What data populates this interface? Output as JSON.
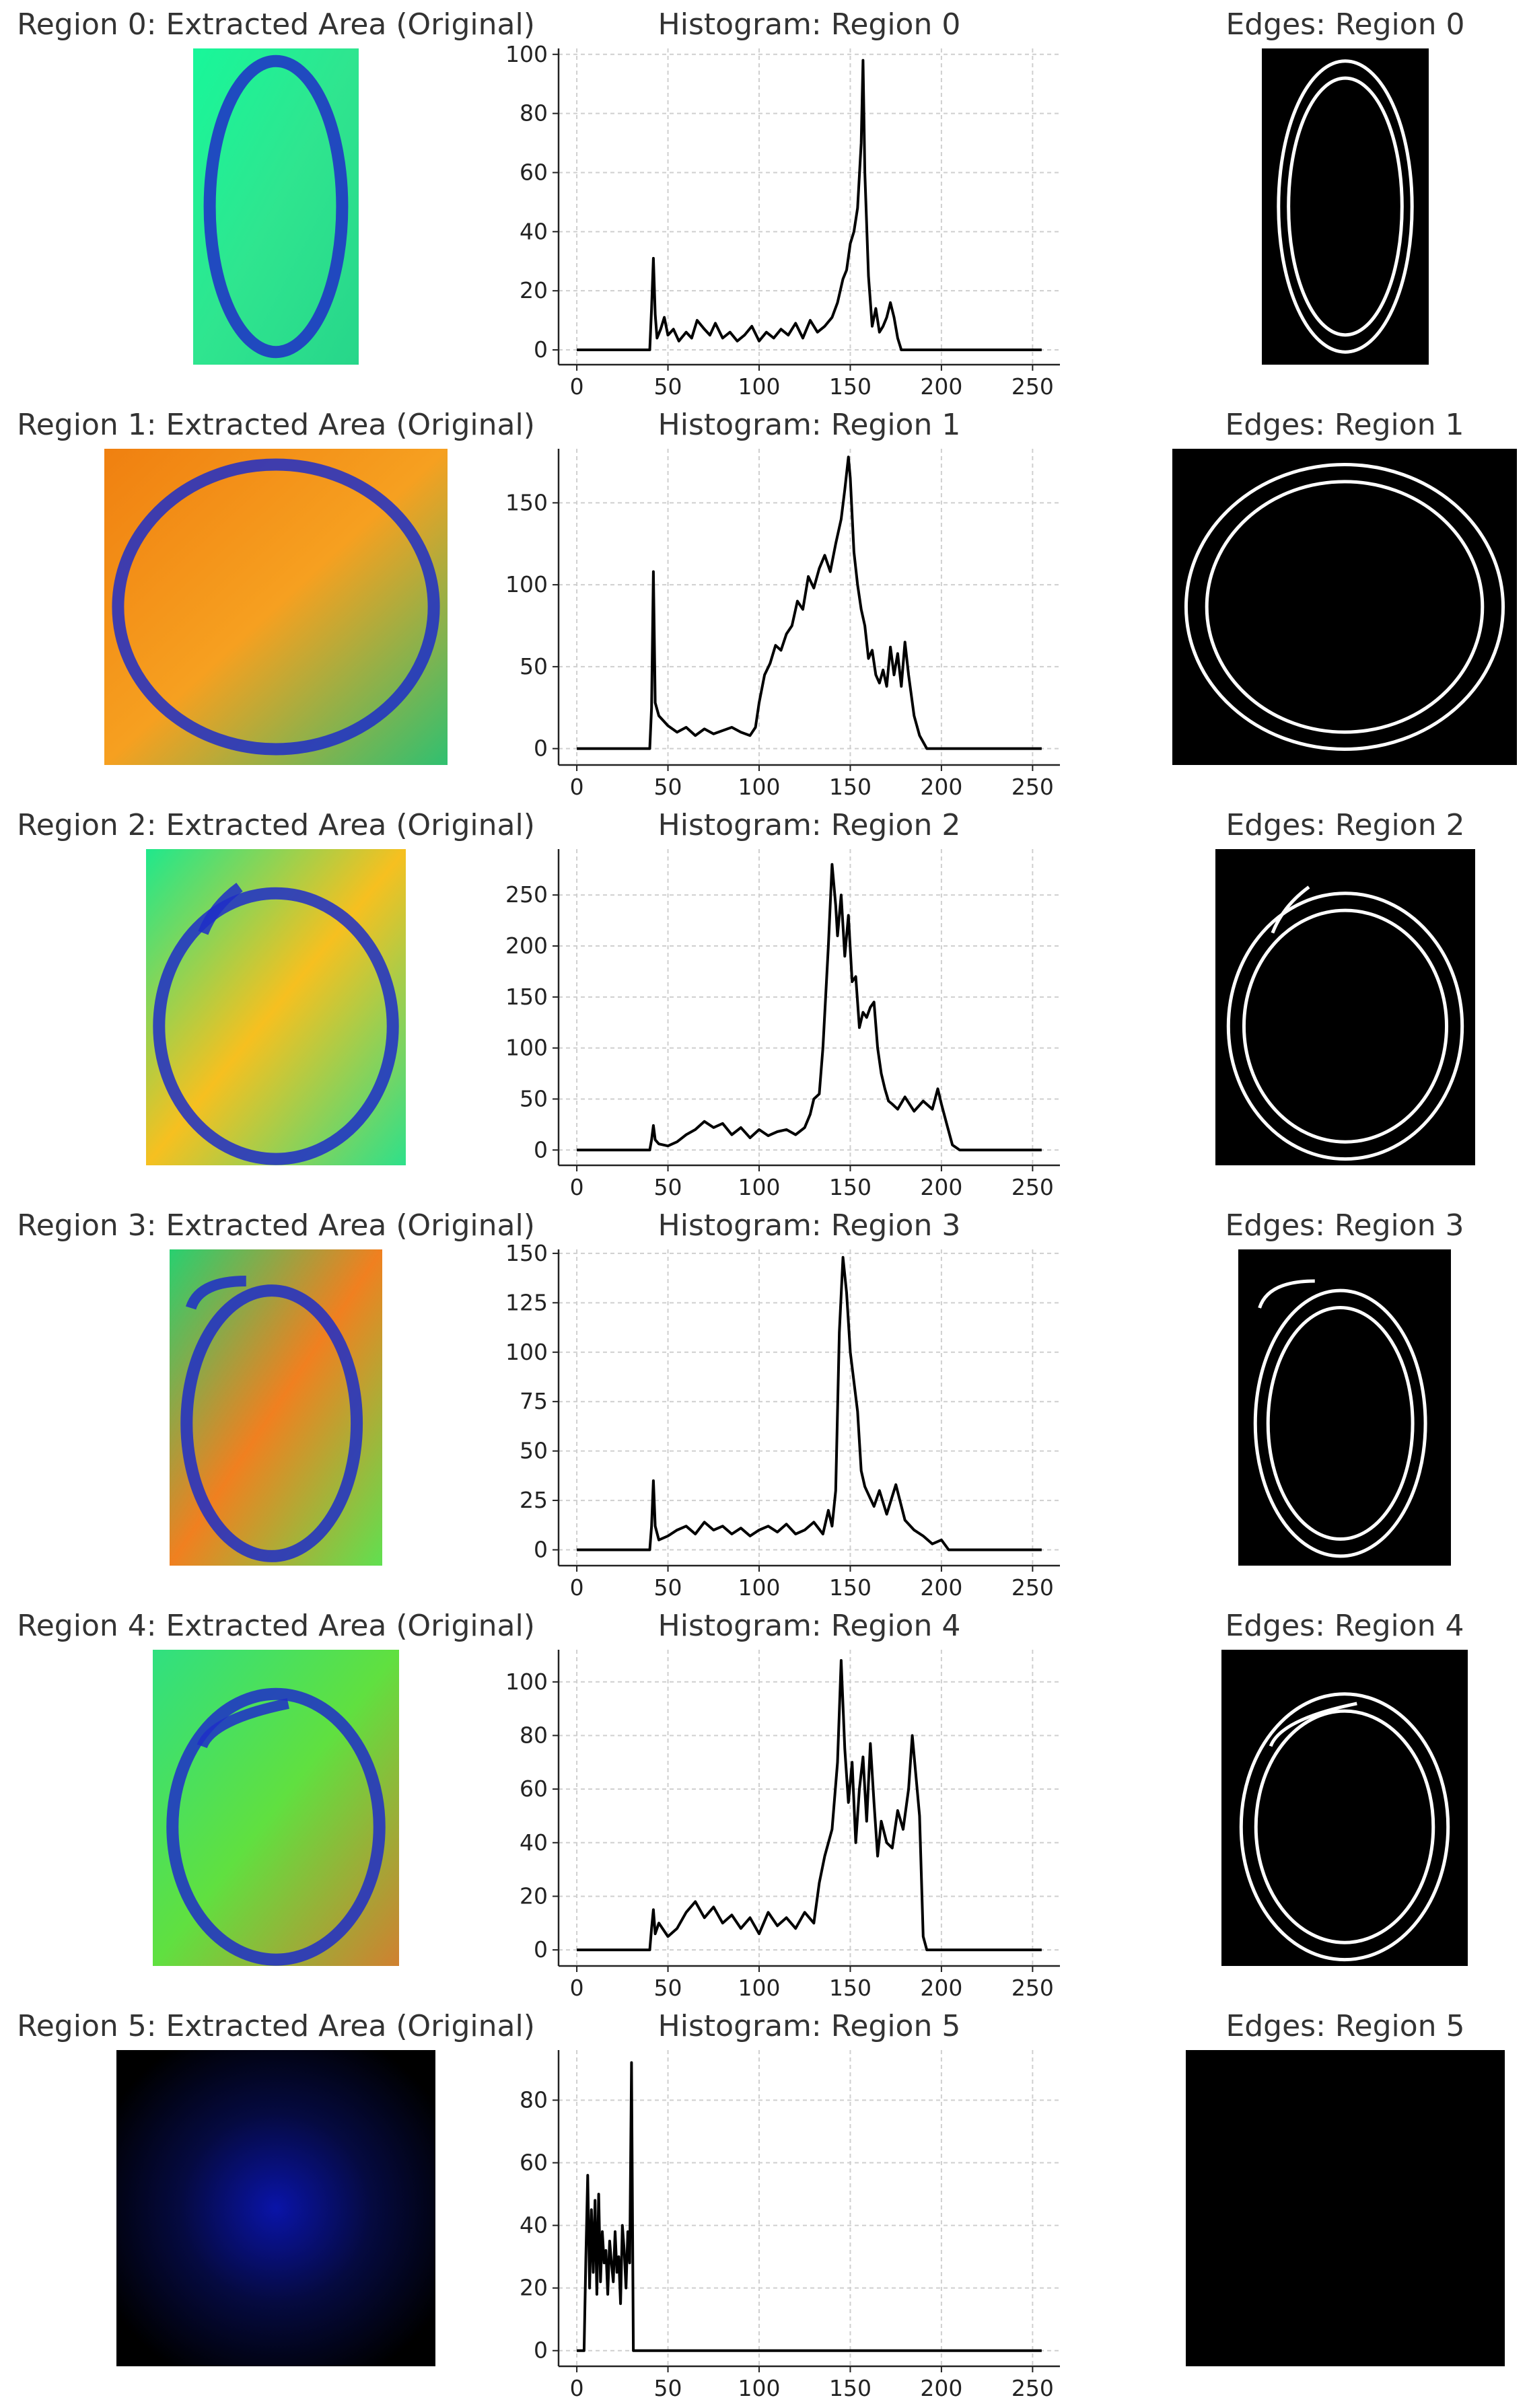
{
  "colors": {
    "background": "#ffffff",
    "line": "#000000",
    "grid": "#cfcfcf",
    "axis": "#222222",
    "title_text": "#333333",
    "edges_background": "#000000",
    "edges_line": "#ffffff",
    "ink_blue": "#1f2ec8"
  },
  "chart_data": [
    {
      "type": "line",
      "title": "Histogram: Region 0",
      "original_title": "Region 0: Extracted Area (Original)",
      "edges_title": "Edges: Region 0",
      "original_colors": [
        "#18f79a",
        "#2fe58f",
        "#27d68a"
      ],
      "xlim": [
        -10,
        265
      ],
      "ylim": [
        -5,
        102
      ],
      "xticks": [
        0,
        50,
        100,
        150,
        200,
        250
      ],
      "yticks": [
        0,
        20,
        40,
        60,
        80,
        100
      ],
      "grid": true,
      "x": [
        0,
        40,
        41,
        42,
        43,
        44,
        46,
        48,
        50,
        53,
        56,
        60,
        63,
        66,
        70,
        73,
        76,
        80,
        84,
        88,
        92,
        96,
        100,
        104,
        108,
        112,
        116,
        120,
        124,
        128,
        132,
        136,
        140,
        143,
        146,
        148,
        150,
        152,
        154,
        156,
        157,
        158,
        160,
        162,
        164,
        166,
        168,
        170,
        172,
        174,
        176,
        178,
        200,
        255
      ],
      "y": [
        0,
        0,
        14,
        31,
        12,
        4,
        7,
        11,
        5,
        7,
        3,
        6,
        4,
        10,
        7,
        5,
        9,
        4,
        6,
        3,
        5,
        8,
        3,
        6,
        4,
        7,
        5,
        9,
        4,
        10,
        6,
        8,
        11,
        16,
        24,
        27,
        36,
        40,
        48,
        70,
        98,
        60,
        25,
        8,
        14,
        6,
        8,
        11,
        16,
        11,
        4,
        0,
        0,
        0
      ]
    },
    {
      "type": "line",
      "title": "Histogram: Region 1",
      "original_title": "Region 1: Extracted Area (Original)",
      "edges_title": "Edges: Region 1",
      "original_colors": [
        "#f08010",
        "#f6a020",
        "#30c070"
      ],
      "xlim": [
        -10,
        265
      ],
      "ylim": [
        -10,
        183
      ],
      "xticks": [
        0,
        50,
        100,
        150,
        200,
        250
      ],
      "yticks": [
        0,
        50,
        100,
        150
      ],
      "grid": true,
      "x": [
        0,
        40,
        41,
        42,
        43,
        45,
        50,
        55,
        60,
        65,
        70,
        75,
        80,
        85,
        90,
        95,
        98,
        100,
        103,
        106,
        109,
        112,
        115,
        118,
        121,
        124,
        127,
        130,
        133,
        136,
        139,
        142,
        145,
        147,
        149,
        150,
        152,
        154,
        156,
        158,
        160,
        162,
        164,
        166,
        168,
        170,
        172,
        174,
        176,
        178,
        180,
        182,
        185,
        188,
        192,
        200,
        255
      ],
      "y": [
        0,
        0,
        25,
        108,
        28,
        20,
        14,
        10,
        13,
        8,
        12,
        9,
        11,
        13,
        10,
        8,
        13,
        28,
        45,
        52,
        63,
        60,
        70,
        75,
        90,
        85,
        105,
        98,
        110,
        118,
        108,
        125,
        140,
        158,
        178,
        165,
        120,
        100,
        85,
        75,
        55,
        60,
        45,
        40,
        48,
        38,
        62,
        45,
        58,
        38,
        65,
        45,
        20,
        8,
        0,
        0,
        0
      ]
    },
    {
      "type": "line",
      "title": "Histogram: Region 2",
      "original_title": "Region 2: Extracted Area (Original)",
      "edges_title": "Edges: Region 2",
      "original_colors": [
        "#1fe88c",
        "#f6c020",
        "#2ee08a"
      ],
      "xlim": [
        -10,
        265
      ],
      "ylim": [
        -15,
        295
      ],
      "xticks": [
        0,
        50,
        100,
        150,
        200,
        250
      ],
      "yticks": [
        0,
        50,
        100,
        150,
        200,
        250
      ],
      "grid": true,
      "x": [
        0,
        40,
        41,
        42,
        43,
        45,
        50,
        55,
        60,
        65,
        70,
        75,
        80,
        85,
        90,
        95,
        100,
        105,
        110,
        115,
        120,
        125,
        128,
        130,
        133,
        135,
        138,
        140,
        142,
        143,
        145,
        147,
        149,
        151,
        153,
        155,
        157,
        159,
        161,
        163,
        165,
        167,
        169,
        171,
        173,
        176,
        180,
        185,
        190,
        195,
        198,
        200,
        203,
        206,
        210,
        255
      ],
      "y": [
        0,
        0,
        10,
        24,
        10,
        6,
        4,
        8,
        15,
        20,
        28,
        22,
        26,
        15,
        22,
        12,
        20,
        14,
        18,
        20,
        15,
        22,
        35,
        50,
        55,
        100,
        200,
        280,
        240,
        210,
        250,
        190,
        230,
        165,
        170,
        120,
        135,
        130,
        140,
        145,
        100,
        75,
        60,
        48,
        45,
        40,
        52,
        38,
        48,
        40,
        60,
        45,
        25,
        5,
        0,
        0
      ]
    },
    {
      "type": "line",
      "title": "Histogram: Region 3",
      "original_title": "Region 3: Extracted Area (Original)",
      "edges_title": "Edges: Region 3",
      "original_colors": [
        "#28d070",
        "#f08020",
        "#60e050"
      ],
      "xlim": [
        -10,
        265
      ],
      "ylim": [
        -8,
        152
      ],
      "xticks": [
        0,
        50,
        100,
        150,
        200,
        250
      ],
      "yticks": [
        0,
        25,
        50,
        75,
        100,
        125,
        150
      ],
      "grid": true,
      "x": [
        0,
        40,
        41,
        42,
        43,
        45,
        50,
        55,
        60,
        65,
        70,
        75,
        80,
        85,
        90,
        95,
        100,
        105,
        110,
        115,
        120,
        125,
        130,
        135,
        138,
        140,
        142,
        144,
        146,
        148,
        150,
        152,
        154,
        156,
        158,
        160,
        163,
        166,
        170,
        175,
        180,
        185,
        190,
        195,
        200,
        204,
        255
      ],
      "y": [
        0,
        0,
        12,
        35,
        12,
        5,
        7,
        10,
        12,
        8,
        14,
        10,
        12,
        8,
        11,
        7,
        10,
        12,
        9,
        13,
        8,
        10,
        14,
        8,
        20,
        12,
        30,
        110,
        148,
        130,
        100,
        85,
        70,
        40,
        32,
        28,
        22,
        30,
        18,
        33,
        15,
        10,
        7,
        3,
        5,
        0,
        0
      ]
    },
    {
      "type": "line",
      "title": "Histogram: Region 4",
      "original_title": "Region 4: Extracted Area (Original)",
      "edges_title": "Edges: Region 4",
      "original_colors": [
        "#30e080",
        "#60e040",
        "#d08030"
      ],
      "xlim": [
        -10,
        265
      ],
      "ylim": [
        -6,
        112
      ],
      "xticks": [
        0,
        50,
        100,
        150,
        200,
        250
      ],
      "yticks": [
        0,
        20,
        40,
        60,
        80,
        100
      ],
      "grid": true,
      "x": [
        0,
        40,
        41,
        42,
        43,
        45,
        50,
        55,
        60,
        65,
        70,
        75,
        80,
        85,
        90,
        95,
        100,
        105,
        110,
        115,
        120,
        125,
        130,
        133,
        136,
        140,
        143,
        145,
        147,
        149,
        151,
        153,
        155,
        157,
        159,
        161,
        163,
        165,
        167,
        170,
        173,
        176,
        179,
        182,
        184,
        186,
        188,
        190,
        192,
        200,
        255
      ],
      "y": [
        0,
        0,
        8,
        15,
        6,
        10,
        5,
        8,
        14,
        18,
        12,
        16,
        10,
        13,
        8,
        12,
        6,
        14,
        9,
        12,
        8,
        14,
        10,
        25,
        35,
        45,
        70,
        108,
        75,
        55,
        70,
        40,
        60,
        72,
        48,
        77,
        55,
        35,
        48,
        40,
        38,
        52,
        45,
        60,
        80,
        65,
        50,
        5,
        0,
        0,
        0
      ]
    },
    {
      "type": "line",
      "title": "Histogram: Region 5",
      "original_title": "Region 5: Extracted Area (Original)",
      "edges_title": "Edges: Region 5",
      "original_colors": [
        "#0a14a8",
        "#050a40",
        "#000000"
      ],
      "xlim": [
        -10,
        265
      ],
      "ylim": [
        -5,
        96
      ],
      "xticks": [
        0,
        50,
        100,
        150,
        200,
        250
      ],
      "yticks": [
        0,
        20,
        40,
        60,
        80
      ],
      "grid": true,
      "x": [
        0,
        4,
        5,
        6,
        7,
        8,
        9,
        10,
        11,
        12,
        13,
        14,
        15,
        16,
        17,
        18,
        19,
        20,
        21,
        22,
        23,
        24,
        25,
        26,
        27,
        28,
        29,
        30,
        31,
        32,
        33,
        50,
        255
      ],
      "y": [
        0,
        0,
        30,
        56,
        20,
        45,
        25,
        48,
        18,
        50,
        22,
        38,
        28,
        32,
        18,
        35,
        28,
        22,
        38,
        25,
        30,
        15,
        40,
        32,
        20,
        38,
        28,
        92,
        0,
        0,
        0,
        0,
        0
      ]
    }
  ]
}
